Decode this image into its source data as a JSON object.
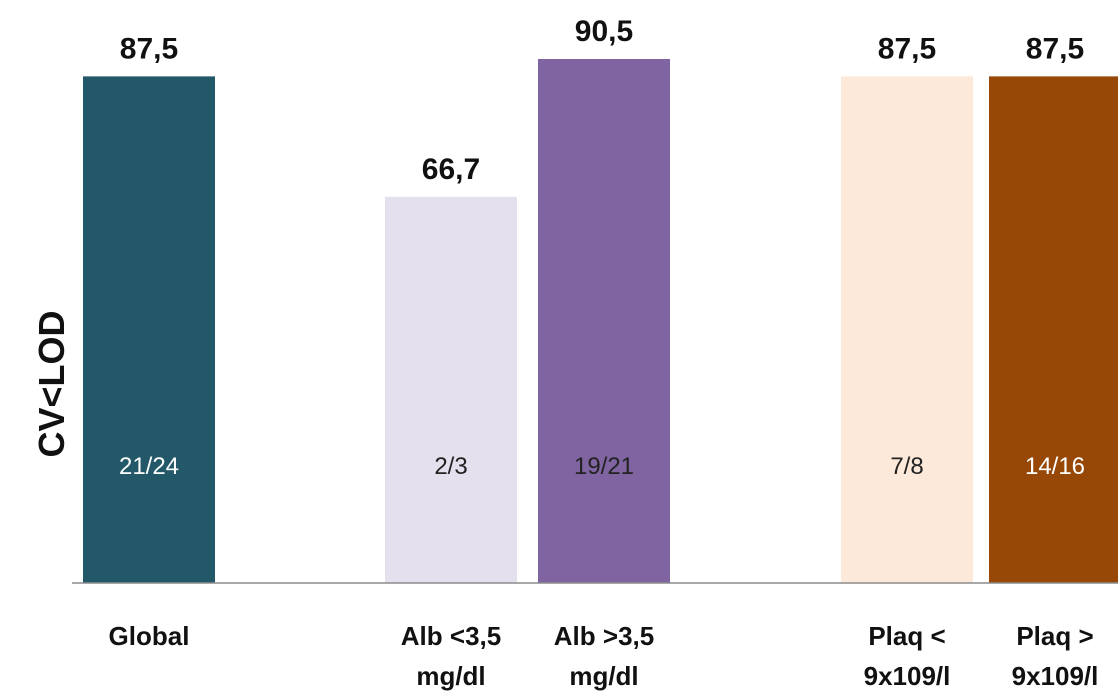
{
  "chart_data": {
    "type": "bar",
    "title": "",
    "ylabel": "CV<LOD",
    "xlabel": "",
    "ylim": [
      0,
      100
    ],
    "grid": false,
    "legend": "none",
    "bars": [
      {
        "category_lines": [
          "Global"
        ],
        "value": 87.5,
        "value_label": "87,5",
        "fraction": "21/24",
        "color": "#225868",
        "fraction_color": "#ffffff"
      },
      {
        "category_lines": [
          "Alb <3,5",
          "mg/dl"
        ],
        "value": 66.7,
        "value_label": "66,7",
        "fraction": "2/3",
        "color": "#e5e0ee",
        "fraction_color": "#222222"
      },
      {
        "category_lines": [
          "Alb >3,5",
          "mg/dl"
        ],
        "value": 90.5,
        "value_label": "90,5",
        "fraction": "19/21",
        "color": "#8064a2",
        "fraction_color": "#222222"
      },
      {
        "category_lines": [
          "Plaq <",
          "9x109/l"
        ],
        "value": 87.5,
        "value_label": "87,5",
        "fraction": "7/8",
        "color": "#fde9d9",
        "fraction_color": "#222222"
      },
      {
        "category_lines": [
          "Plaq >",
          "9x109/l"
        ],
        "value": 87.5,
        "value_label": "87,5",
        "fraction": "14/16",
        "color": "#974807",
        "fraction_color": "#ffffff"
      }
    ]
  }
}
